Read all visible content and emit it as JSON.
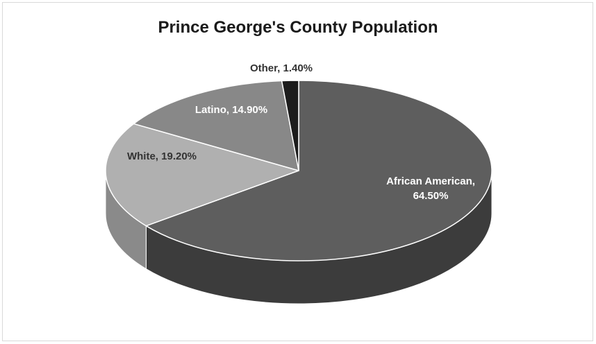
{
  "chart_data": {
    "type": "pie",
    "title": "Prince George's County Population",
    "slices": [
      {
        "label": "African American",
        "value": 64.5,
        "text_lines": [
          "African American,",
          "64.50%"
        ],
        "color": "#5e5e5e",
        "side": "#3c3c3c",
        "text_color": "#ffffff"
      },
      {
        "label": "White",
        "value": 19.2,
        "text_lines": [
          "White, 19.20%"
        ],
        "color": "#b0b0b0",
        "side": "#8a8a8a",
        "text_color": "#333333"
      },
      {
        "label": "Latino",
        "value": 14.9,
        "text_lines": [
          "Latino, 14.90%"
        ],
        "color": "#888888",
        "side": "#666666",
        "text_color": "#ffffff"
      },
      {
        "label": "Other",
        "value": 1.4,
        "text_lines": [
          "Other, 1.40%"
        ],
        "color": "#1c1c1c",
        "side": "#111111",
        "text_color": "#333333"
      }
    ],
    "legend": "none",
    "style": "3d-pie"
  }
}
